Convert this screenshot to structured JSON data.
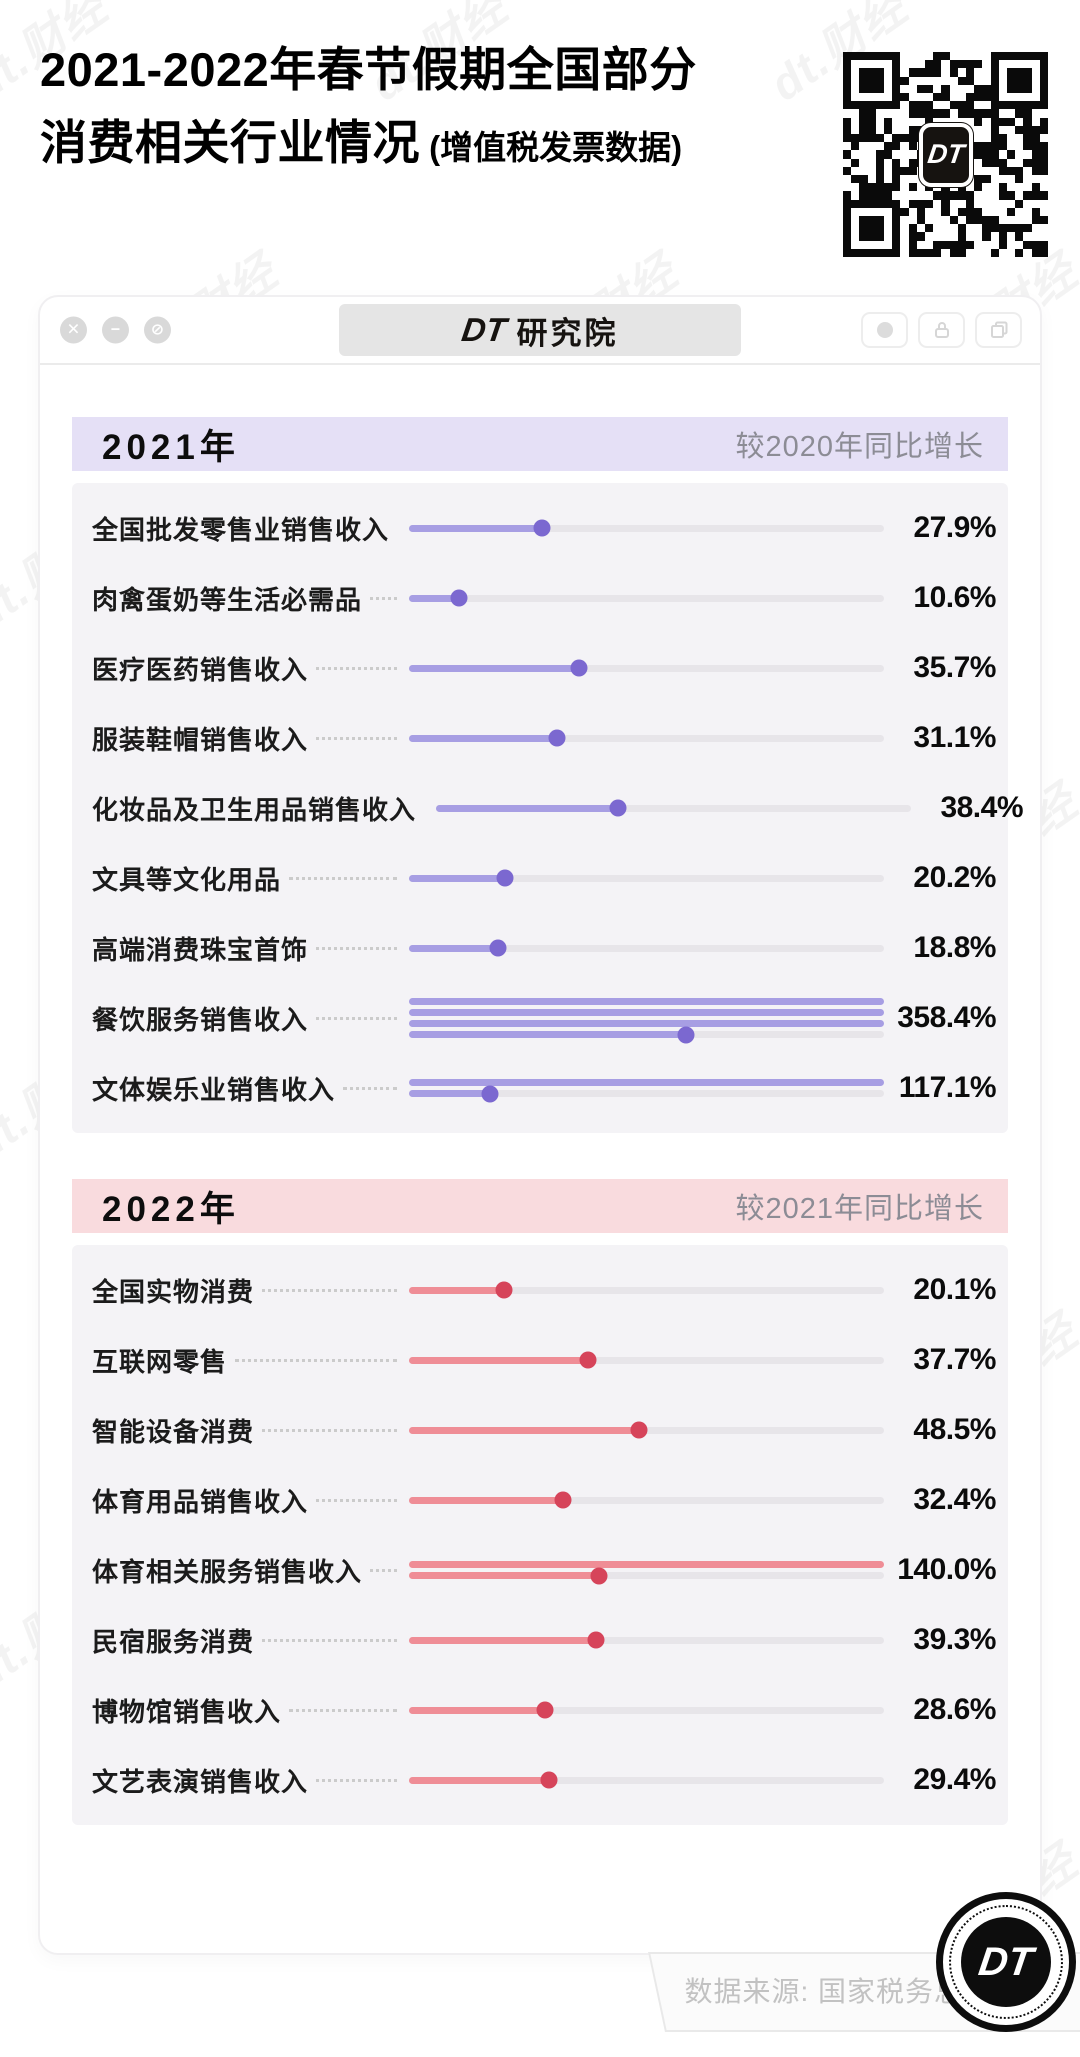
{
  "page": {
    "watermark_text": "dt.财经"
  },
  "header": {
    "title_line1": "2021-2022年春节假期全国部分",
    "title_line2": "消费相关行业情况",
    "title_note": " (增值税发票数据)",
    "qr_badge": "DT"
  },
  "window": {
    "controls": [
      {
        "name": "close",
        "glyph": "✕"
      },
      {
        "name": "minimize",
        "glyph": "−"
      },
      {
        "name": "disable",
        "glyph": "⊘"
      }
    ],
    "title_dt": "DT",
    "title_rest": "研究院"
  },
  "chart_data": [
    {
      "type": "bar",
      "subtype": "lollipop-wrapped",
      "year": "2021年",
      "comparison": "较2020年同比增长",
      "unit": "%",
      "axis_note": "one bar line = 100%, values over 100% wrap to stacked lines",
      "header_bg": "#e5e0f6",
      "bar_color": "#a79ee3",
      "dot_color": "#7b68d0",
      "rows": [
        {
          "label": "全国批发零售业销售收入",
          "value": 27.9,
          "display": "27.9%"
        },
        {
          "label": "肉禽蛋奶等生活必需品",
          "value": 10.6,
          "display": "10.6%"
        },
        {
          "label": "医疗医药销售收入",
          "value": 35.7,
          "display": "35.7%"
        },
        {
          "label": "服装鞋帽销售收入",
          "value": 31.1,
          "display": "31.1%"
        },
        {
          "label": "化妆品及卫生用品销售收入",
          "value": 38.4,
          "display": "38.4%"
        },
        {
          "label": "文具等文化用品",
          "value": 20.2,
          "display": "20.2%"
        },
        {
          "label": "高端消费珠宝首饰",
          "value": 18.8,
          "display": "18.8%"
        },
        {
          "label": "餐饮服务销售收入",
          "value": 358.4,
          "display": "358.4%"
        },
        {
          "label": "文体娱乐业销售收入",
          "value": 117.1,
          "display": "117.1%"
        }
      ]
    },
    {
      "type": "bar",
      "subtype": "lollipop-wrapped",
      "year": "2022年",
      "comparison": "较2021年同比增长",
      "unit": "%",
      "axis_note": "one bar line = 100%, values over 100% wrap to stacked lines",
      "header_bg": "#f9dbde",
      "bar_color": "#ef8d96",
      "dot_color": "#d6445a",
      "rows": [
        {
          "label": "全国实物消费",
          "value": 20.1,
          "display": "20.1%"
        },
        {
          "label": "互联网零售",
          "value": 37.7,
          "display": "37.7%"
        },
        {
          "label": "智能设备消费",
          "value": 48.5,
          "display": "48.5%"
        },
        {
          "label": "体育用品销售收入",
          "value": 32.4,
          "display": "32.4%"
        },
        {
          "label": "体育相关服务销售收入",
          "value": 140.0,
          "display": "140.0%"
        },
        {
          "label": "民宿服务消费",
          "value": 39.3,
          "display": "39.3%"
        },
        {
          "label": "博物馆销售收入",
          "value": 28.6,
          "display": "28.6%"
        },
        {
          "label": "文艺表演销售收入",
          "value": 29.4,
          "display": "29.4%"
        }
      ]
    }
  ],
  "footer": {
    "source": "数据来源: 国家税务总局",
    "logo_text": "DT"
  }
}
